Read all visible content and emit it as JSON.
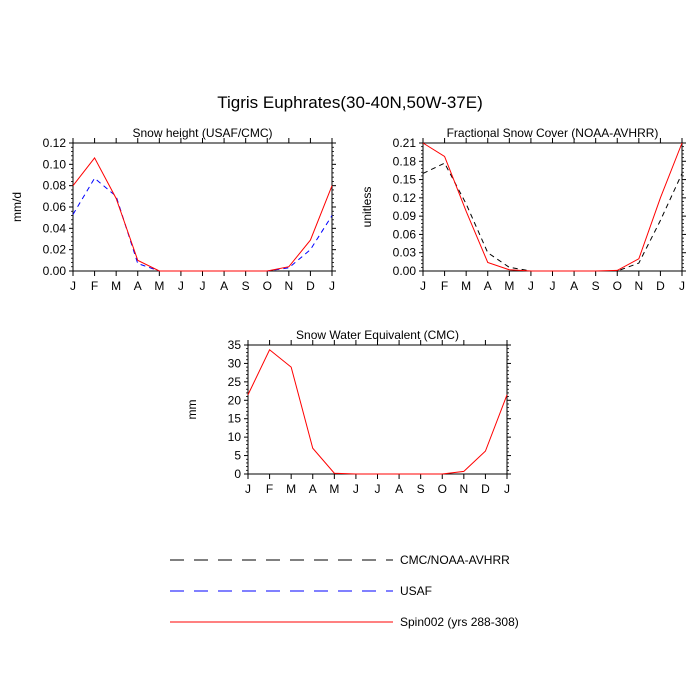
{
  "figure_title": "Tigris Euphrates(30-40N,50W-37E)",
  "chart_data": [
    {
      "type": "line",
      "title": "Snow height (USAF/CMC)",
      "xlabel": "",
      "ylabel": "mm/d",
      "categories": [
        "J",
        "F",
        "M",
        "A",
        "M",
        "J",
        "J",
        "A",
        "S",
        "O",
        "N",
        "D",
        "J"
      ],
      "ylim": [
        0,
        0.12
      ],
      "yticks": [
        "0.00",
        "0.02",
        "0.04",
        "0.06",
        "0.08",
        "0.10",
        "0.12"
      ],
      "grid": false,
      "series": [
        {
          "name": "USAF",
          "color": "#0000ff",
          "dash": "dashed",
          "values": [
            0.053,
            0.087,
            0.07,
            0.007,
            0.0,
            0.0,
            0.0,
            0.0,
            0.0,
            0.0,
            0.003,
            0.02,
            0.052
          ]
        },
        {
          "name": "Spin002 (yrs 288-308)",
          "color": "#ff0000",
          "dash": "solid",
          "values": [
            0.08,
            0.106,
            0.068,
            0.01,
            0.0,
            0.0,
            0.0,
            0.0,
            0.0,
            0.0,
            0.004,
            0.029,
            0.08
          ]
        }
      ]
    },
    {
      "type": "line",
      "title": "Fractional Snow Cover (NOAA-AVHRR)",
      "xlabel": "",
      "ylabel": "unitless",
      "categories": [
        "J",
        "F",
        "M",
        "A",
        "M",
        "J",
        "J",
        "A",
        "S",
        "O",
        "N",
        "D",
        "J"
      ],
      "ylim": [
        0,
        0.21
      ],
      "yticks": [
        "0.00",
        "0.03",
        "0.06",
        "0.09",
        "0.12",
        "0.15",
        "0.18",
        "0.21"
      ],
      "grid": false,
      "series": [
        {
          "name": "CMC/NOAA-AVHRR",
          "color": "#000000",
          "dash": "dashed",
          "values": [
            0.16,
            0.177,
            0.11,
            0.03,
            0.006,
            0.0,
            0.0,
            0.0,
            0.0,
            0.0,
            0.013,
            0.083,
            0.16
          ]
        },
        {
          "name": "Spin002 (yrs 288-308)",
          "color": "#ff0000",
          "dash": "solid",
          "values": [
            0.21,
            0.188,
            0.098,
            0.014,
            0.002,
            0.0,
            0.0,
            0.0,
            0.0,
            0.001,
            0.02,
            0.12,
            0.21
          ]
        }
      ]
    },
    {
      "type": "line",
      "title": "Snow Water Equivalent (CMC)",
      "xlabel": "",
      "ylabel": "mm",
      "categories": [
        "J",
        "F",
        "M",
        "A",
        "M",
        "J",
        "J",
        "A",
        "S",
        "O",
        "N",
        "D",
        "J"
      ],
      "ylim": [
        0,
        35
      ],
      "yticks": [
        "0",
        "5",
        "10",
        "15",
        "20",
        "25",
        "30",
        "35"
      ],
      "grid": false,
      "series": [
        {
          "name": "CMC/NOAA-AVHRR",
          "color": "#000000",
          "dash": "dashed",
          "values": [
            0,
            0,
            0,
            0,
            0,
            0,
            0,
            0,
            0,
            0,
            0,
            0,
            0
          ]
        },
        {
          "name": "Spin002 (yrs 288-308)",
          "color": "#ff0000",
          "dash": "solid",
          "values": [
            21.5,
            33.7,
            29.0,
            7.0,
            0.2,
            0.0,
            0.0,
            0.0,
            0.0,
            0.0,
            0.7,
            6.2,
            21.5
          ]
        }
      ]
    }
  ],
  "legend": {
    "placement": "bottom",
    "items": [
      {
        "label": "CMC/NOAA-AVHRR",
        "color": "#000000",
        "dash": "dashed"
      },
      {
        "label": "USAF",
        "color": "#0000ff",
        "dash": "dashed"
      },
      {
        "label": "Spin002 (yrs 288-308)",
        "color": "#ff0000",
        "dash": "solid"
      }
    ]
  }
}
